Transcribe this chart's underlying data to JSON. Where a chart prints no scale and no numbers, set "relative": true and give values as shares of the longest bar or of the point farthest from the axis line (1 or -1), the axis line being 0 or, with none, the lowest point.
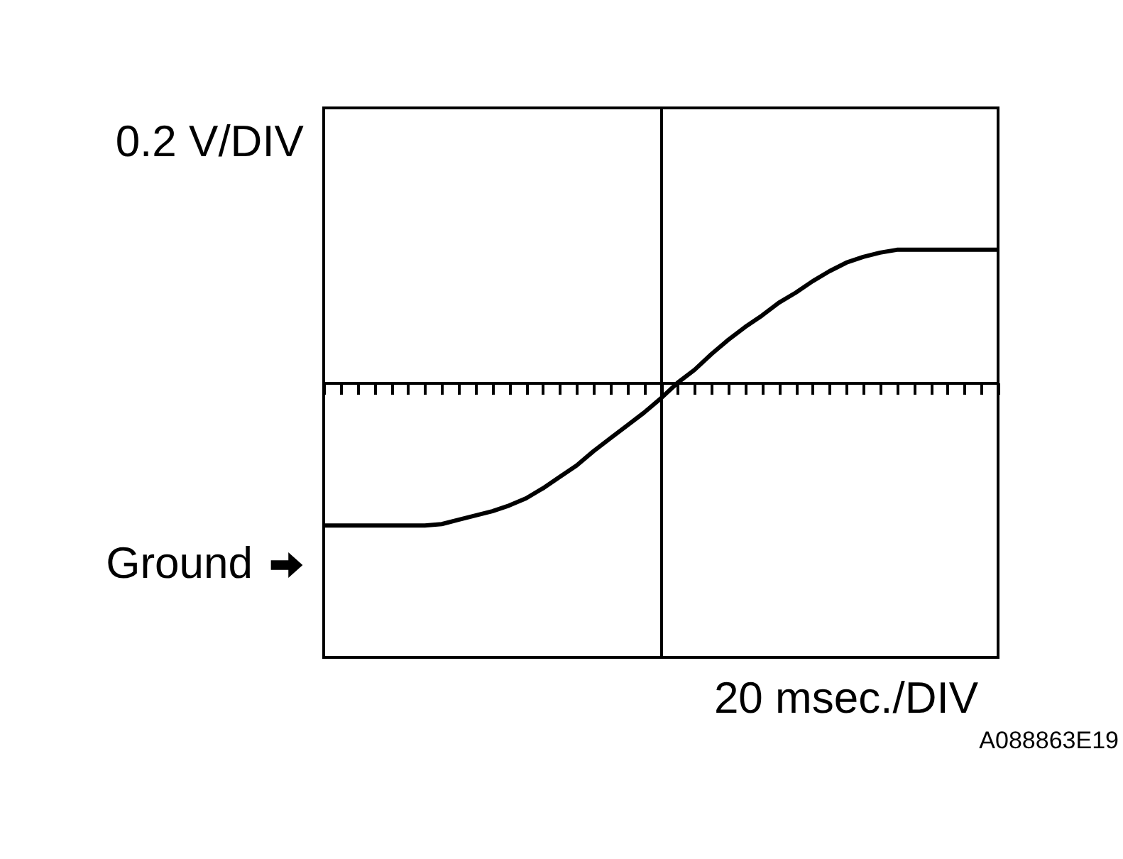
{
  "chart_data": {
    "type": "line",
    "relative": true,
    "xlabel": "20 msec./DIV",
    "ylabel": "0.2 V/DIV",
    "annotations": [
      "Ground",
      "A088863E19"
    ],
    "categories": [
      null,
      null,
      null,
      null,
      null,
      null,
      null,
      null,
      null,
      null,
      null,
      null,
      null,
      null,
      null,
      null,
      null,
      null,
      null,
      null,
      null,
      null,
      null,
      null,
      null,
      null,
      null,
      null,
      null,
      null,
      null,
      null,
      null,
      null,
      null,
      null,
      null,
      null,
      null,
      null,
      null
    ],
    "series": [
      {
        "color": "#000000",
        "values": [
          -1,
          -1,
          -1,
          -1,
          -1,
          -1,
          -1,
          -0.99,
          -0.96,
          -0.93,
          -0.9,
          -0.86,
          -0.81,
          -0.74,
          -0.66,
          -0.58,
          -0.48,
          -0.39,
          -0.3,
          -0.21,
          -0.11,
          0,
          0.09,
          0.2,
          0.3,
          0.39,
          0.47,
          0.56,
          0.63,
          0.71,
          0.78,
          0.84,
          0.88,
          0.91,
          0.93,
          0.93,
          0.93,
          0.93,
          0.93,
          0.93,
          0.93
        ]
      }
    ],
    "grid": false,
    "marker": "none",
    "line_style": "solid"
  }
}
